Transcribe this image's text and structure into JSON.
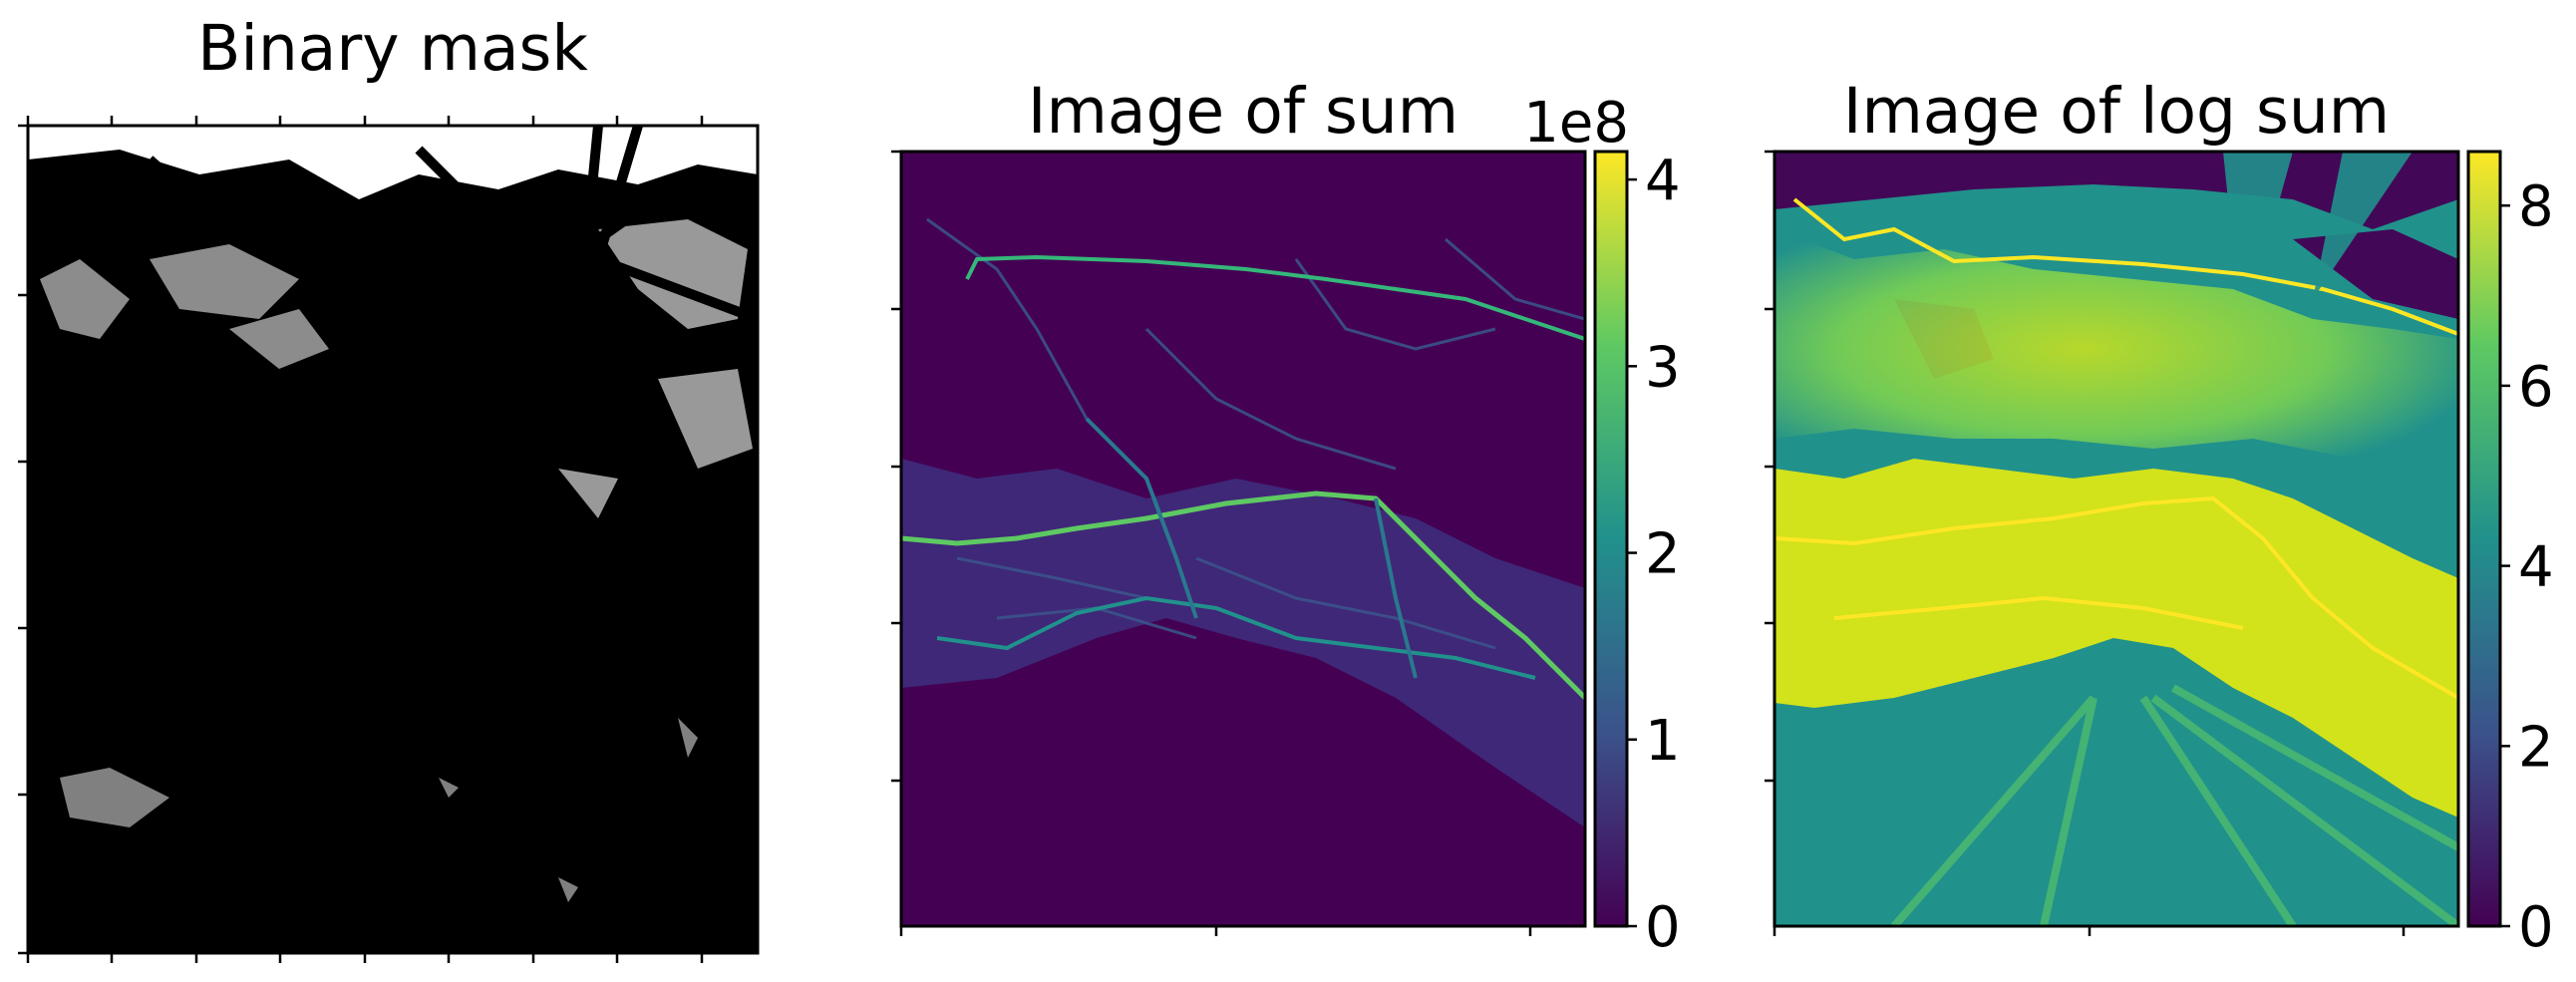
{
  "chart_data": [
    {
      "type": "heatmap",
      "title": "Binary mask",
      "colormap": "gray",
      "value_range": [
        0,
        1
      ],
      "axis_tick_labels_visible": false,
      "description": "black/white binary raster of the same region"
    },
    {
      "type": "heatmap",
      "title": "Image of sum",
      "colormap": "viridis",
      "colorbar": {
        "ticks": [
          0,
          1,
          2,
          3,
          4
        ],
        "tick_labels": [
          "0",
          "1",
          "2",
          "3",
          "4"
        ],
        "range": [
          0,
          4.15
        ],
        "scale_label": "1e8"
      },
      "axis_tick_labels_visible": false
    },
    {
      "type": "heatmap",
      "title": "Image of log sum",
      "colormap": "viridis",
      "colorbar": {
        "ticks": [
          0,
          2,
          4,
          6,
          8
        ],
        "tick_labels": [
          "0",
          "2",
          "4",
          "6",
          "8"
        ],
        "range": [
          0,
          8.6
        ]
      },
      "axis_tick_labels_visible": false
    }
  ],
  "colors": {
    "viridis_low": "#440154",
    "viridis_mid": "#21918c",
    "viridis_high": "#fde725",
    "mask_black": "#000000",
    "mask_white": "#ffffff"
  }
}
